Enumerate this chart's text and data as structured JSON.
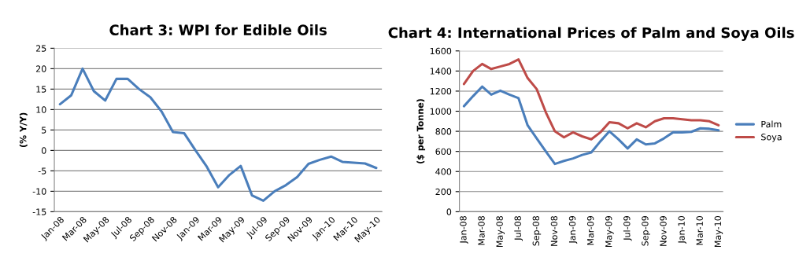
{
  "chart_data": [
    {
      "type": "line",
      "title": "Chart 3: WPI for Edible Oils",
      "ylabel": "(% Y/Y)",
      "categories": [
        "Jan-08",
        null,
        "Mar-08",
        null,
        "May-08",
        null,
        "Jul-08",
        null,
        "Sep-08",
        null,
        "Nov-08",
        null,
        "Jan-09",
        null,
        "Mar-09",
        null,
        "May-09",
        null,
        "Jul-09",
        null,
        "Sep-09",
        null,
        "Nov-09",
        null,
        "Jan-10",
        null,
        "Mar-10",
        null,
        "May-10"
      ],
      "series": [
        {
          "color": "#4a7ebb",
          "values": [
            11.3,
            13.5,
            20,
            14.5,
            12.2,
            17.5,
            17.5,
            15,
            13,
            9.5,
            4.5,
            4.2,
            0,
            -4,
            -9,
            -6,
            -3.8,
            -11,
            -12.3,
            -10,
            -8.5,
            -6.5,
            -3.3,
            -2.3,
            -1.5,
            -2.8,
            -3,
            -3.2,
            -4.3
          ]
        }
      ],
      "ylim": [
        -15,
        25
      ],
      "yticks": [
        -15,
        -10,
        -5,
        0,
        5,
        10,
        15,
        20,
        25
      ],
      "grid": "y",
      "legend": false
    },
    {
      "type": "line",
      "title": "Chart 4: International Prices of Palm and Soya Oils",
      "ylabel": "($ per Tonne)",
      "categories": [
        "Jan-08",
        null,
        "Mar-08",
        null,
        "May-08",
        null,
        "Jul-08",
        null,
        "Sep-08",
        null,
        "Nov-08",
        null,
        "Jan-09",
        null,
        "Mar-09",
        null,
        "May-09",
        null,
        "Jul-09",
        null,
        "Sep-09",
        null,
        "Nov-09",
        null,
        "Jan-10",
        null,
        "Mar-10",
        null,
        "May-10"
      ],
      "series": [
        {
          "name": "Palm",
          "color": "#4a7ebb",
          "values": [
            1050,
            1150,
            1245,
            1165,
            1205,
            1165,
            1130,
            860,
            730,
            600,
            475,
            505,
            530,
            565,
            590,
            700,
            800,
            720,
            630,
            720,
            670,
            680,
            730,
            790,
            790,
            795,
            830,
            825,
            810
          ]
        },
        {
          "name": "Soya",
          "color": "#be4b48",
          "values": [
            1270,
            1400,
            1470,
            1420,
            1445,
            1470,
            1515,
            1330,
            1220,
            990,
            800,
            740,
            790,
            750,
            720,
            790,
            890,
            880,
            830,
            880,
            840,
            900,
            930,
            930,
            920,
            910,
            910,
            900,
            860
          ]
        }
      ],
      "ylim": [
        0,
        1600
      ],
      "yticks": [
        0,
        200,
        400,
        600,
        800,
        1000,
        1200,
        1400,
        1600
      ],
      "grid": "y",
      "legend": "right"
    }
  ]
}
